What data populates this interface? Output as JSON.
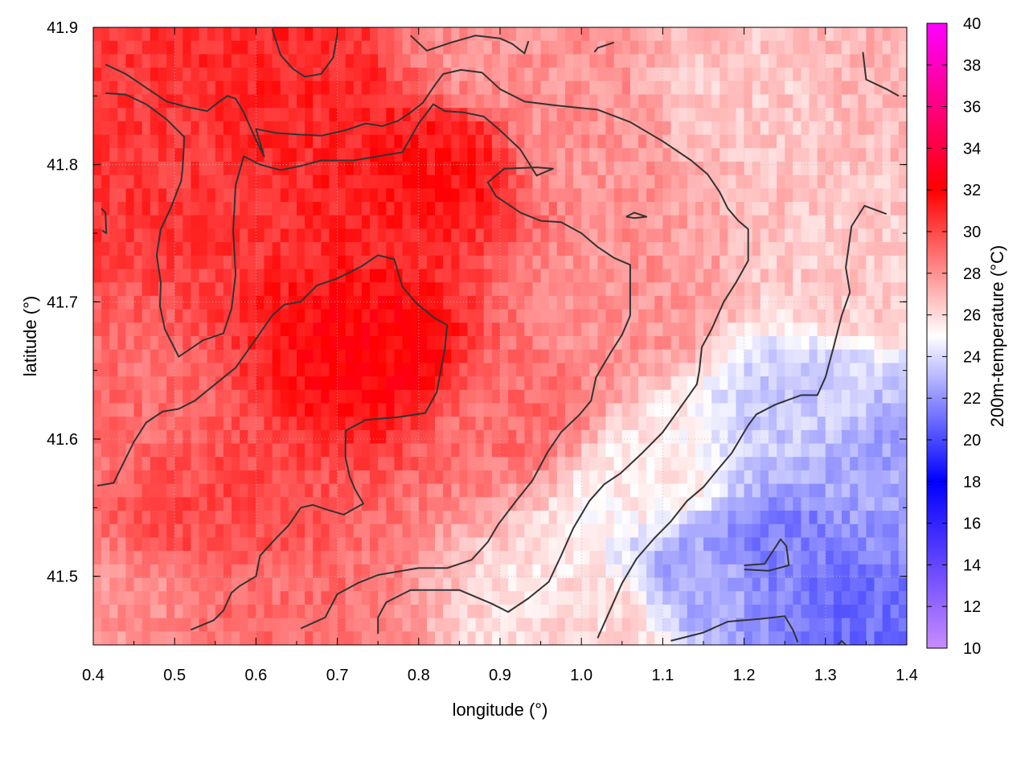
{
  "chart_data": {
    "type": "heatmap",
    "title": "",
    "xlabel": "longitude (°)",
    "ylabel": "latitude (°)",
    "colorbar_label": "200m-temperature (°C)",
    "xlim": [
      0.4,
      1.4
    ],
    "ylim": [
      41.45,
      41.9
    ],
    "xticks": [
      0.4,
      0.5,
      0.6,
      0.7,
      0.8,
      0.9,
      1.0,
      1.1,
      1.2,
      1.3,
      1.4
    ],
    "yticks": [
      41.5,
      41.6,
      41.7,
      41.8,
      41.9
    ],
    "x_tick_labels": [
      "0.4",
      "0.5",
      "0.6",
      "0.7",
      "0.8",
      "0.9",
      "1.0",
      "1.1",
      "1.2",
      "1.3",
      "1.4"
    ],
    "y_tick_labels": [
      "41.5",
      "41.6",
      "41.7",
      "41.8",
      "41.9"
    ],
    "colorbar_range": [
      10,
      40
    ],
    "colorbar_ticks": [
      10,
      12,
      14,
      16,
      18,
      20,
      22,
      24,
      26,
      28,
      30,
      32,
      34,
      36,
      38,
      40
    ],
    "colorbar_tick_labels": [
      "10",
      "12",
      "14",
      "16",
      "18",
      "20",
      "22",
      "24",
      "26",
      "28",
      "30",
      "32",
      "34",
      "36",
      "38",
      "40"
    ],
    "colormap": [
      {
        "value": 10,
        "color": "#c98cff"
      },
      {
        "value": 18,
        "color": "#0000ff"
      },
      {
        "value": 25,
        "color": "#ffffff"
      },
      {
        "value": 32,
        "color": "#ff0000"
      },
      {
        "value": 40,
        "color": "#ff00ff"
      }
    ],
    "grid": true,
    "contour_color": "#333333",
    "field_samples": [
      {
        "lon": 0.75,
        "lat": 41.66,
        "value": 32
      },
      {
        "lon": 0.82,
        "lat": 41.8,
        "value": 31.5
      },
      {
        "lon": 0.45,
        "lat": 41.8,
        "value": 30.5
      },
      {
        "lon": 0.55,
        "lat": 41.55,
        "value": 30
      },
      {
        "lon": 0.65,
        "lat": 41.86,
        "value": 31
      },
      {
        "lon": 0.6,
        "lat": 41.47,
        "value": 29
      },
      {
        "lon": 0.92,
        "lat": 41.62,
        "value": 29
      },
      {
        "lon": 1.0,
        "lat": 41.82,
        "value": 28
      },
      {
        "lon": 1.05,
        "lat": 41.7,
        "value": 28
      },
      {
        "lon": 0.9,
        "lat": 41.88,
        "value": 28
      },
      {
        "lon": 1.2,
        "lat": 41.85,
        "value": 26.5
      },
      {
        "lon": 1.38,
        "lat": 41.88,
        "value": 27
      },
      {
        "lon": 1.35,
        "lat": 41.72,
        "value": 26.5
      },
      {
        "lon": 1.08,
        "lat": 41.57,
        "value": 25.5
      },
      {
        "lon": 1.02,
        "lat": 41.47,
        "value": 26
      },
      {
        "lon": 1.15,
        "lat": 41.5,
        "value": 22.5
      },
      {
        "lon": 1.25,
        "lat": 41.52,
        "value": 21.5
      },
      {
        "lon": 1.33,
        "lat": 41.47,
        "value": 21
      },
      {
        "lon": 1.36,
        "lat": 41.58,
        "value": 22.5
      },
      {
        "lon": 1.28,
        "lat": 41.62,
        "value": 23.5
      },
      {
        "lon": 0.42,
        "lat": 41.47,
        "value": 28
      },
      {
        "lon": 0.42,
        "lat": 41.62,
        "value": 29
      }
    ],
    "contour_lines": [
      [
        [
          0.415,
          41.873
        ],
        [
          0.44,
          41.866
        ],
        [
          0.465,
          41.856
        ],
        [
          0.49,
          41.846
        ],
        [
          0.515,
          41.842
        ],
        [
          0.54,
          41.839
        ],
        [
          0.555,
          41.846
        ],
        [
          0.565,
          41.85
        ],
        [
          0.575,
          41.848
        ],
        [
          0.585,
          41.838
        ],
        [
          0.6,
          41.818
        ],
        [
          0.61,
          41.806
        ],
        [
          0.6,
          41.826
        ],
        [
          0.625,
          41.823
        ],
        [
          0.65,
          41.822
        ],
        [
          0.68,
          41.821
        ],
        [
          0.71,
          41.825
        ],
        [
          0.735,
          41.83
        ],
        [
          0.755,
          41.828
        ],
        [
          0.775,
          41.832
        ],
        [
          0.79,
          41.838
        ],
        [
          0.805,
          41.845
        ],
        [
          0.82,
          41.858
        ],
        [
          0.83,
          41.866
        ],
        [
          0.852,
          41.869
        ],
        [
          0.878,
          41.867
        ],
        [
          0.9,
          41.855
        ],
        [
          0.93,
          41.846
        ],
        [
          0.97,
          41.843
        ],
        [
          1.02,
          41.84
        ],
        [
          1.06,
          41.831
        ],
        [
          1.1,
          41.817
        ],
        [
          1.135,
          41.803
        ],
        [
          1.155,
          41.793
        ],
        [
          1.17,
          41.78
        ],
        [
          1.18,
          41.768
        ],
        [
          1.193,
          41.759
        ],
        [
          1.205,
          41.753
        ],
        [
          1.205,
          41.73
        ],
        [
          1.19,
          41.714
        ],
        [
          1.175,
          41.7
        ],
        [
          1.16,
          41.68
        ],
        [
          1.148,
          41.667
        ],
        [
          1.145,
          41.65
        ],
        [
          1.142,
          41.64
        ],
        [
          1.13,
          41.63
        ],
        [
          1.118,
          41.62
        ],
        [
          1.1,
          41.605
        ],
        [
          1.075,
          41.59
        ],
        [
          1.048,
          41.575
        ],
        [
          1.028,
          41.567
        ],
        [
          1.01,
          41.555
        ],
        [
          0.99,
          41.535
        ],
        [
          0.975,
          41.515
        ],
        [
          0.96,
          41.496
        ],
        [
          0.935,
          41.484
        ],
        [
          0.91,
          41.474
        ],
        [
          0.89,
          41.48
        ],
        [
          0.85,
          41.49
        ],
        [
          0.79,
          41.49
        ],
        [
          0.76,
          41.481
        ],
        [
          0.75,
          41.47
        ],
        [
          0.75,
          41.458
        ]
      ],
      [
        [
          0.415,
          41.852
        ],
        [
          0.44,
          41.851
        ],
        [
          0.465,
          41.844
        ],
        [
          0.49,
          41.833
        ],
        [
          0.512,
          41.82
        ],
        [
          0.51,
          41.798
        ],
        [
          0.508,
          41.788
        ],
        [
          0.495,
          41.768
        ],
        [
          0.483,
          41.753
        ],
        [
          0.478,
          41.734
        ],
        [
          0.483,
          41.714
        ],
        [
          0.482,
          41.697
        ],
        [
          0.488,
          41.68
        ],
        [
          0.5,
          41.666
        ],
        [
          0.505,
          41.66
        ],
        [
          0.52,
          41.666
        ],
        [
          0.535,
          41.672
        ],
        [
          0.56,
          41.677
        ],
        [
          0.57,
          41.695
        ],
        [
          0.575,
          41.72
        ],
        [
          0.572,
          41.752
        ],
        [
          0.575,
          41.785
        ],
        [
          0.585,
          41.806
        ],
        [
          0.605,
          41.8
        ],
        [
          0.63,
          41.796
        ],
        [
          0.655,
          41.799
        ],
        [
          0.68,
          41.803
        ],
        [
          0.72,
          41.803
        ],
        [
          0.78,
          41.809
        ],
        [
          0.8,
          41.83
        ],
        [
          0.818,
          41.844
        ],
        [
          0.832,
          41.839
        ],
        [
          0.855,
          41.838
        ],
        [
          0.88,
          41.835
        ],
        [
          0.9,
          41.825
        ],
        [
          0.925,
          41.811
        ],
        [
          0.945,
          41.792
        ],
        [
          0.965,
          41.797
        ],
        [
          0.945,
          41.798
        ],
        [
          0.905,
          41.797
        ],
        [
          0.885,
          41.787
        ],
        [
          0.895,
          41.777
        ],
        [
          0.925,
          41.765
        ],
        [
          0.95,
          41.759
        ],
        [
          0.975,
          41.758
        ],
        [
          1.0,
          41.75
        ],
        [
          1.02,
          41.74
        ],
        [
          1.04,
          41.732
        ],
        [
          1.06,
          41.727
        ],
        [
          1.06,
          41.7
        ],
        [
          1.06,
          41.69
        ],
        [
          1.05,
          41.676
        ],
        [
          1.035,
          41.662
        ],
        [
          1.018,
          41.645
        ],
        [
          1.012,
          41.628
        ],
        [
          0.998,
          41.618
        ],
        [
          0.975,
          41.605
        ],
        [
          0.958,
          41.59
        ],
        [
          0.94,
          41.57
        ],
        [
          0.92,
          41.555
        ],
        [
          0.898,
          41.538
        ],
        [
          0.885,
          41.525
        ],
        [
          0.865,
          41.512
        ],
        [
          0.835,
          41.506
        ],
        [
          0.8,
          41.506
        ],
        [
          0.75,
          41.501
        ],
        [
          0.725,
          41.495
        ],
        [
          0.7,
          41.487
        ],
        [
          0.685,
          41.47
        ],
        [
          0.655,
          41.462
        ]
      ],
      [
        [
          0.405,
          41.566
        ],
        [
          0.425,
          41.568
        ],
        [
          0.435,
          41.58
        ],
        [
          0.45,
          41.598
        ],
        [
          0.465,
          41.612
        ],
        [
          0.485,
          41.62
        ],
        [
          0.505,
          41.622
        ],
        [
          0.525,
          41.628
        ],
        [
          0.55,
          41.64
        ],
        [
          0.575,
          41.652
        ],
        [
          0.6,
          41.673
        ],
        [
          0.62,
          41.69
        ],
        [
          0.635,
          41.698
        ],
        [
          0.655,
          41.7
        ],
        [
          0.675,
          41.712
        ],
        [
          0.7,
          41.717
        ],
        [
          0.73,
          41.726
        ],
        [
          0.75,
          41.734
        ],
        [
          0.77,
          41.731
        ],
        [
          0.78,
          41.711
        ],
        [
          0.797,
          41.699
        ],
        [
          0.82,
          41.688
        ],
        [
          0.835,
          41.683
        ],
        [
          0.832,
          41.665
        ],
        [
          0.822,
          41.634
        ],
        [
          0.808,
          41.619
        ],
        [
          0.775,
          41.616
        ],
        [
          0.735,
          41.614
        ],
        [
          0.71,
          41.606
        ],
        [
          0.71,
          41.587
        ],
        [
          0.715,
          41.573
        ],
        [
          0.722,
          41.563
        ],
        [
          0.732,
          41.553
        ],
        [
          0.708,
          41.545
        ],
        [
          0.69,
          41.548
        ],
        [
          0.67,
          41.552
        ],
        [
          0.655,
          41.55
        ],
        [
          0.64,
          41.537
        ],
        [
          0.625,
          41.528
        ],
        [
          0.605,
          41.515
        ],
        [
          0.6,
          41.5
        ],
        [
          0.58,
          41.493
        ],
        [
          0.57,
          41.488
        ],
        [
          0.56,
          41.475
        ],
        [
          0.548,
          41.468
        ],
        [
          0.52,
          41.461
        ]
      ],
      [
        [
          0.41,
          41.768
        ],
        [
          0.415,
          41.765
        ],
        [
          0.416,
          41.75
        ],
        [
          0.411,
          41.752
        ]
      ],
      [
        [
          0.62,
          41.899
        ],
        [
          0.63,
          41.88
        ],
        [
          0.645,
          41.87
        ],
        [
          0.66,
          41.864
        ],
        [
          0.68,
          41.866
        ],
        [
          0.695,
          41.878
        ],
        [
          0.7,
          41.895
        ]
      ],
      [
        [
          0.79,
          41.894
        ],
        [
          0.81,
          41.883
        ],
        [
          0.84,
          41.889
        ],
        [
          0.87,
          41.894
        ],
        [
          0.9,
          41.892
        ],
        [
          0.915,
          41.888
        ],
        [
          0.93,
          41.881
        ],
        [
          0.935,
          41.89
        ]
      ],
      [
        [
          1.016,
          41.882
        ],
        [
          1.02,
          41.885
        ],
        [
          1.04,
          41.889
        ]
      ],
      [
        [
          1.346,
          41.882
        ],
        [
          1.35,
          41.862
        ],
        [
          1.375,
          41.855
        ],
        [
          1.39,
          41.85
        ]
      ],
      [
        [
          1.055,
          41.762
        ],
        [
          1.065,
          41.765
        ],
        [
          1.08,
          41.762
        ],
        [
          1.065,
          41.761
        ],
        [
          1.055,
          41.762
        ]
      ],
      [
        [
          1.02,
          41.455
        ],
        [
          1.035,
          41.475
        ],
        [
          1.05,
          41.495
        ],
        [
          1.068,
          41.513
        ],
        [
          1.09,
          41.528
        ],
        [
          1.11,
          41.54
        ],
        [
          1.13,
          41.555
        ],
        [
          1.15,
          41.565
        ],
        [
          1.168,
          41.578
        ],
        [
          1.185,
          41.59
        ],
        [
          1.195,
          41.6
        ],
        [
          1.205,
          41.61
        ],
        [
          1.215,
          41.618
        ],
        [
          1.238,
          41.625
        ],
        [
          1.27,
          41.632
        ],
        [
          1.29,
          41.632
        ],
        [
          1.3,
          41.645
        ],
        [
          1.31,
          41.667
        ],
        [
          1.32,
          41.69
        ],
        [
          1.33,
          41.707
        ],
        [
          1.325,
          41.725
        ],
        [
          1.332,
          41.755
        ],
        [
          1.348,
          41.77
        ],
        [
          1.375,
          41.764
        ]
      ],
      [
        [
          1.2,
          41.508
        ],
        [
          1.225,
          41.509
        ],
        [
          1.245,
          41.527
        ],
        [
          1.252,
          41.522
        ],
        [
          1.255,
          41.508
        ],
        [
          1.23,
          41.504
        ],
        [
          1.2,
          41.505
        ]
      ],
      [
        [
          1.11,
          41.453
        ],
        [
          1.15,
          41.459
        ],
        [
          1.18,
          41.467
        ],
        [
          1.22,
          41.469
        ],
        [
          1.25,
          41.471
        ],
        [
          1.26,
          41.461
        ],
        [
          1.266,
          41.452
        ]
      ],
      [
        [
          1.315,
          41.45
        ],
        [
          1.32,
          41.453
        ],
        [
          1.325,
          41.45
        ]
      ]
    ]
  }
}
